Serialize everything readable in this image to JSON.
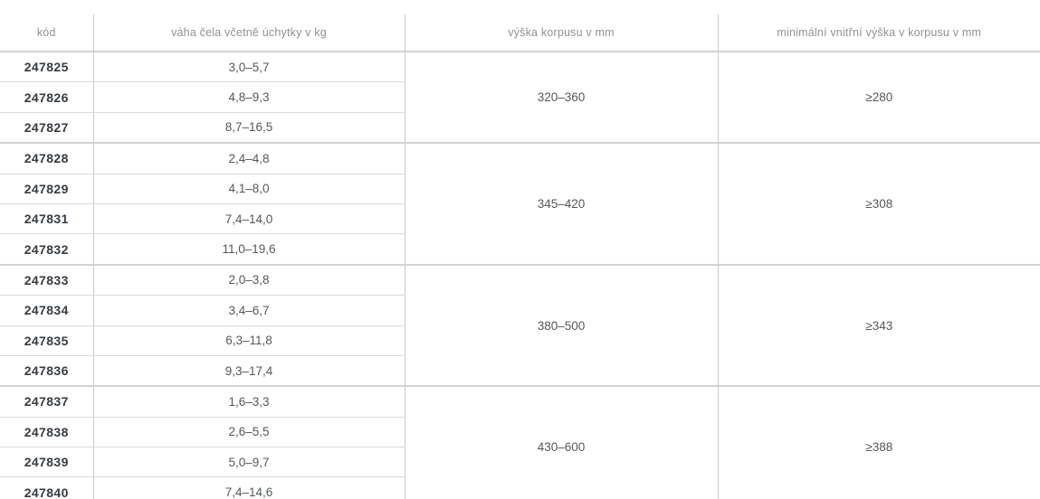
{
  "table": {
    "columns": [
      "kód",
      "váha čela včetně úchytky v kg",
      "výška korpusu v mm",
      "minimální vnitřní výška v korpusu v mm"
    ],
    "groups": [
      {
        "vyska_korpusu": "320–360",
        "min_vnitrni_vyska": "≥280",
        "rows": [
          {
            "kod": "247825",
            "vaha": "3,0–5,7"
          },
          {
            "kod": "247826",
            "vaha": "4,8–9,3"
          },
          {
            "kod": "247827",
            "vaha": "8,7–16,5"
          }
        ]
      },
      {
        "vyska_korpusu": "345–420",
        "min_vnitrni_vyska": "≥308",
        "rows": [
          {
            "kod": "247828",
            "vaha": "2,4–4,8"
          },
          {
            "kod": "247829",
            "vaha": "4,1–8,0"
          },
          {
            "kod": "247831",
            "vaha": "7,4–14,0"
          },
          {
            "kod": "247832",
            "vaha": "11,0–19,6"
          }
        ]
      },
      {
        "vyska_korpusu": "380–500",
        "min_vnitrni_vyska": "≥343",
        "rows": [
          {
            "kod": "247833",
            "vaha": "2,0–3,8"
          },
          {
            "kod": "247834",
            "vaha": "3,4–6,7"
          },
          {
            "kod": "247835",
            "vaha": "6,3–11,8"
          },
          {
            "kod": "247836",
            "vaha": "9,3–17,4"
          }
        ]
      },
      {
        "vyska_korpusu": "430–600",
        "min_vnitrni_vyska": "≥388",
        "rows": [
          {
            "kod": "247837",
            "vaha": "1,6–3,3"
          },
          {
            "kod": "247838",
            "vaha": "2,6–5,5"
          },
          {
            "kod": "247839",
            "vaha": "5,0–9,7"
          },
          {
            "kod": "247840",
            "vaha": "7,4–14,6"
          }
        ]
      }
    ]
  },
  "colors": {
    "header_text": "#8f9193",
    "code_text": "#373c41",
    "value_text": "#54585c",
    "row_line": "#dadada",
    "group_line": "#d2d2d2",
    "bottom_line": "#c6c6c6"
  }
}
